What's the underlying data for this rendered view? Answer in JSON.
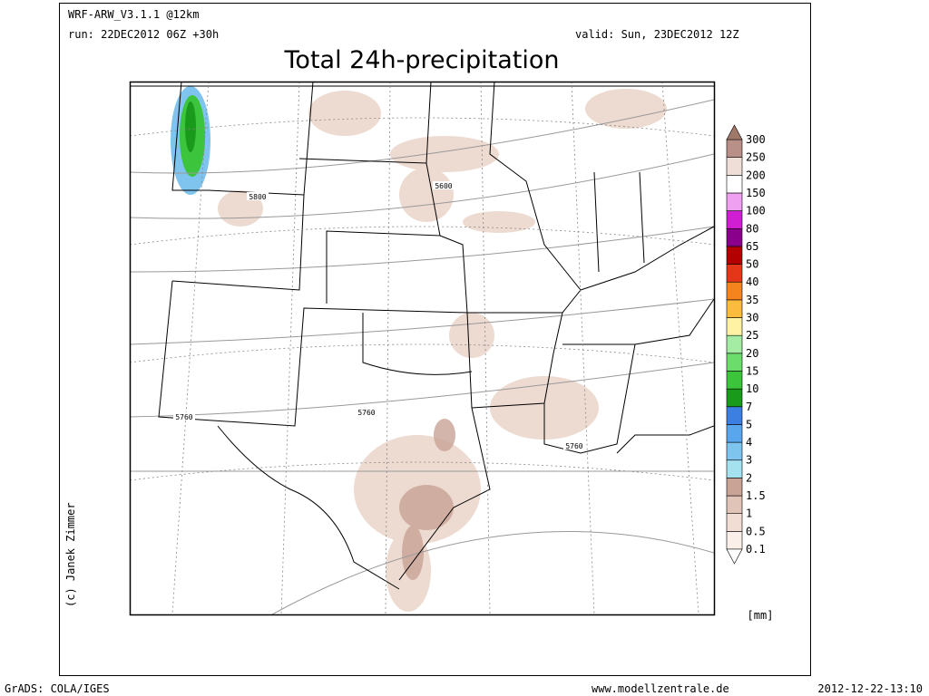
{
  "header": {
    "model": "WRF-ARW_V3.1.1 @12km",
    "run": "run: 22DEC2012 06Z +30h",
    "valid": "valid: Sun, 23DEC2012 12Z",
    "title": "Total 24h-precipitation"
  },
  "map": {
    "contour_labels": [
      "5600",
      "5800",
      "5760",
      "5760",
      "5760"
    ]
  },
  "legend": {
    "labels": [
      "0.1",
      "0.5",
      "1",
      "1.5",
      "2",
      "3",
      "4",
      "5",
      "7",
      "10",
      "15",
      "20",
      "25",
      "30",
      "35",
      "40",
      "50",
      "65",
      "80",
      "100",
      "150",
      "200",
      "250",
      "300"
    ],
    "colors": [
      "#fbefe9",
      "#f1ddd3",
      "#e1c4b8",
      "#c9a396",
      "#a5e2ef",
      "#7fc4ef",
      "#5aa6ec",
      "#3c7fe0",
      "#1a9a1a",
      "#3cc43c",
      "#6cdc6c",
      "#a4eca4",
      "#fff2a4",
      "#fbbb3c",
      "#f5841c",
      "#e6361a",
      "#b40000",
      "#8b008b",
      "#d21ed2",
      "#f0a0f0",
      "#ffffff",
      "#efded8",
      "#b89088"
    ],
    "unit": "[mm]"
  },
  "credit": "(c) Janek Zimmer",
  "footer": {
    "left": "GrADS: COLA/IGES",
    "center": "www.modellzentrale.de",
    "right": "2012-12-22-13:10"
  }
}
